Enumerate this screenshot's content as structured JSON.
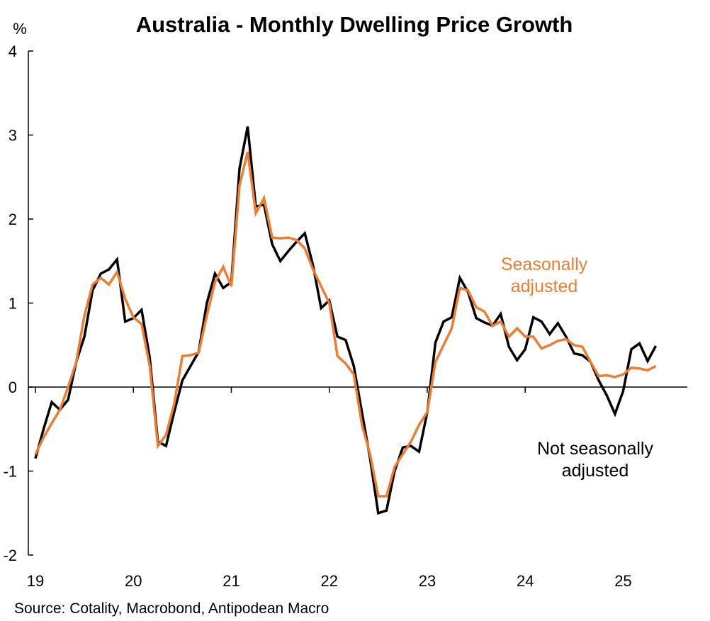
{
  "chart_data": {
    "type": "line",
    "title": "Australia - Monthly Dwelling Price Growth",
    "ylabel": "%",
    "xlabel": "",
    "source": "Source: Cotality, Macrobond, Antipodean Macro",
    "ylim": [
      -2,
      4
    ],
    "yticks": [
      -2,
      -1,
      0,
      1,
      2,
      3,
      4
    ],
    "ytick_labels": [
      "-2",
      "-1",
      "0",
      "1",
      "2",
      "3",
      "4"
    ],
    "xticks": [
      "19",
      "20",
      "21",
      "22",
      "23",
      "24",
      "25"
    ],
    "x_start": "Jan 2019",
    "frequency": "monthly",
    "series": [
      {
        "name": "Not seasonally adjusted",
        "label_lines": [
          "Not seasonally",
          "adjusted"
        ],
        "color": "#000000",
        "values": [
          -0.85,
          -0.5,
          -0.18,
          -0.27,
          -0.15,
          0.3,
          0.6,
          1.15,
          1.35,
          1.4,
          1.52,
          0.78,
          0.82,
          0.92,
          0.35,
          -0.65,
          -0.7,
          -0.3,
          0.08,
          0.25,
          0.42,
          1.0,
          1.35,
          1.18,
          1.25,
          2.6,
          3.1,
          2.15,
          2.17,
          1.7,
          1.5,
          1.62,
          1.73,
          1.83,
          1.45,
          0.94,
          1.03,
          0.6,
          0.56,
          0.25,
          -0.3,
          -0.85,
          -1.5,
          -1.47,
          -1.0,
          -0.72,
          -0.7,
          -0.77,
          -0.3,
          0.53,
          0.78,
          0.83,
          1.3,
          1.13,
          0.82,
          0.77,
          0.73,
          0.87,
          0.48,
          0.32,
          0.45,
          0.83,
          0.78,
          0.63,
          0.76,
          0.6,
          0.4,
          0.38,
          0.3,
          0.08,
          -0.1,
          -0.32,
          -0.05,
          0.45,
          0.52,
          0.31,
          0.49
        ]
      },
      {
        "name": "Seasonally adjusted",
        "label_lines": [
          "Seasonally",
          "adjusted"
        ],
        "color": "#ED7D31",
        "values": [
          -0.8,
          -0.6,
          -0.43,
          -0.27,
          0.0,
          0.3,
          0.85,
          1.22,
          1.3,
          1.22,
          1.37,
          1.05,
          0.83,
          0.75,
          0.25,
          -0.7,
          -0.57,
          -0.2,
          0.37,
          0.38,
          0.41,
          0.85,
          1.25,
          1.43,
          1.2,
          2.4,
          2.8,
          2.07,
          2.25,
          1.78,
          1.77,
          1.78,
          1.75,
          1.65,
          1.4,
          1.2,
          1.0,
          0.37,
          0.28,
          0.15,
          -0.45,
          -0.8,
          -1.3,
          -1.3,
          -0.95,
          -0.8,
          -0.65,
          -0.45,
          -0.3,
          0.3,
          0.5,
          0.7,
          1.18,
          1.15,
          0.95,
          0.9,
          0.73,
          0.78,
          0.6,
          0.7,
          0.6,
          0.6,
          0.46,
          0.5,
          0.55,
          0.57,
          0.5,
          0.48,
          0.3,
          0.13,
          0.14,
          0.12,
          0.15,
          0.23,
          0.22,
          0.2,
          0.25
        ]
      }
    ]
  }
}
